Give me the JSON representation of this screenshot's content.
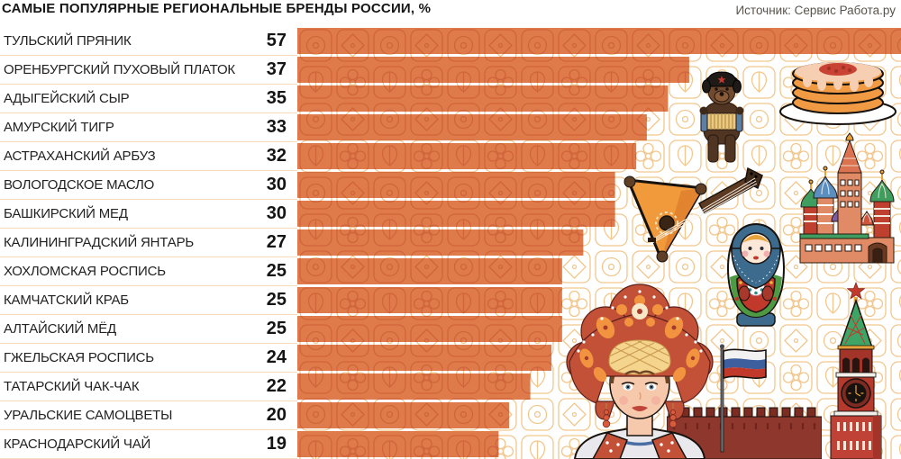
{
  "header": {
    "title": "САМЫЕ ПОПУЛЯРНЫЕ РЕГИОНАЛЬНЫЕ БРЕНДЫ РОССИИ, %",
    "source": "Источник: Сервис Работа.ру"
  },
  "chart_data": {
    "type": "bar",
    "orientation": "horizontal",
    "title": "САМЫЕ ПОПУЛЯРНЫЕ РЕГИОНАЛЬНЫЕ БРЕНДЫ РОССИИ, %",
    "unit": "%",
    "categories": [
      "ТУЛЬСКИЙ ПРЯНИК",
      "ОРЕНБУРГСКИЙ ПУХОВЫЙ ПЛАТОК",
      "АДЫГЕЙСКИЙ СЫР",
      "АМУРСКИЙ ТИГР",
      "АСТРАХАНСКИЙ АРБУЗ",
      "ВОЛОГОДСКОЕ МАСЛО",
      "БАШКИРСКИЙ МЕД",
      "КАЛИНИНГРАДСКИЙ ЯНТАРЬ",
      "ХОХЛОМСКАЯ РОСПИСЬ",
      "КАМЧАТСКИЙ КРАБ",
      "АЛТАЙСКИЙ МЁД",
      "ГЖЕЛЬСКАЯ РОСПИСЬ",
      "ТАТАРСКИЙ ЧАК-ЧАК",
      "УРАЛЬСКИЕ САМОЦВЕТЫ",
      "КРАСНОДАРСКИЙ ЧАЙ"
    ],
    "values": [
      57,
      37,
      35,
      33,
      32,
      30,
      30,
      27,
      25,
      25,
      25,
      24,
      22,
      20,
      19
    ],
    "xlim": [
      0,
      57
    ],
    "grid": false,
    "legend": "none",
    "bar_color": "#DF7A4B",
    "bar_pattern_color": "#CE6138",
    "background_pattern_color": "#F2C78E",
    "row_separator_color": "#F6DDBE"
  },
  "illustrations": [
    "bear-with-accordion",
    "pancakes-with-caviar",
    "st-basils-cathedral",
    "balalaika",
    "matryoshka-doll",
    "kremlin-wall",
    "russian-flag",
    "spasskaya-tower",
    "woman-in-kokoshnik"
  ]
}
